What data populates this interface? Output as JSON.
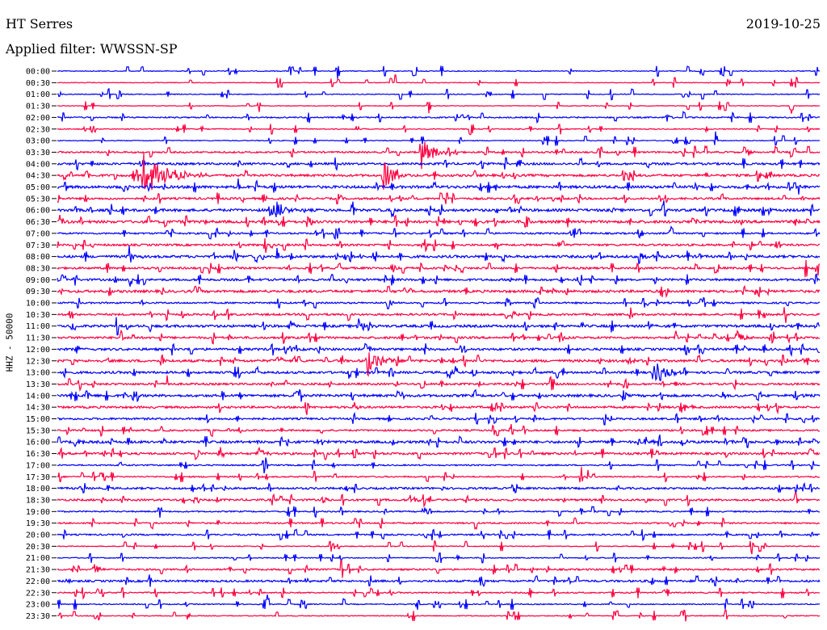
{
  "header": {
    "station": "HT Serres",
    "date": "2019-10-25",
    "filter": "Applied filter: WWSSN-SP"
  },
  "colors": {
    "even": "#0000ff",
    "odd": "#ff0040"
  },
  "chart_data": {
    "type": "line",
    "ylabel": "HHZ - 50000",
    "row_labels": [
      "00:00",
      "00:30",
      "01:00",
      "01:30",
      "02:00",
      "02:30",
      "03:00",
      "03:30",
      "04:00",
      "04:30",
      "05:00",
      "05:30",
      "06:00",
      "06:30",
      "07:00",
      "07:30",
      "08:00",
      "08:30",
      "09:00",
      "09:30",
      "10:00",
      "10:30",
      "11:00",
      "11:30",
      "12:00",
      "12:30",
      "13:00",
      "13:30",
      "14:00",
      "14:30",
      "15:00",
      "15:30",
      "16:00",
      "16:30",
      "17:00",
      "17:30",
      "18:00",
      "18:30",
      "19:00",
      "19:30",
      "20:00",
      "20:30",
      "21:00",
      "21:30",
      "22:00",
      "22:30",
      "23:00",
      "23:30"
    ],
    "noise": [
      0.5,
      0.4,
      0.5,
      0.4,
      0.8,
      0.6,
      0.5,
      1.0,
      1.3,
      1.4,
      1.6,
      1.2,
      1.6,
      1.6,
      1.0,
      1.2,
      1.5,
      1.2,
      1.3,
      1.5,
      1.0,
      1.2,
      1.5,
      1.3,
      1.4,
      1.5,
      1.4,
      1.2,
      1.5,
      1.3,
      1.2,
      1.0,
      1.5,
      1.3,
      0.8,
      0.8,
      1.2,
      1.2,
      0.8,
      0.9,
      0.9,
      0.5,
      0.6,
      1.0,
      1.2,
      0.8,
      0.6,
      0.5
    ],
    "events": [
      {
        "row": 4,
        "x": 826,
        "amp": 6,
        "dur": 14
      },
      {
        "row": 7,
        "x": 522,
        "amp": 22,
        "dur": 40
      },
      {
        "row": 7,
        "x": 926,
        "amp": 5,
        "dur": 10
      },
      {
        "row": 9,
        "x": 177,
        "amp": 30,
        "dur": 80
      },
      {
        "row": 9,
        "x": 475,
        "amp": 18,
        "dur": 36
      },
      {
        "row": 12,
        "x": 339,
        "amp": 16,
        "dur": 30
      },
      {
        "row": 13,
        "x": 75,
        "amp": 10,
        "dur": 10
      },
      {
        "row": 13,
        "x": 985,
        "amp": 6,
        "dur": 10
      },
      {
        "row": 16,
        "x": 160,
        "amp": 14,
        "dur": 18
      },
      {
        "row": 16,
        "x": 790,
        "amp": 12,
        "dur": 20
      },
      {
        "row": 17,
        "x": 1012,
        "amp": 14,
        "dur": 14
      },
      {
        "row": 17,
        "x": 486,
        "amp": 6,
        "dur": 12
      },
      {
        "row": 20,
        "x": 480,
        "amp": 8,
        "dur": 20
      },
      {
        "row": 21,
        "x": 627,
        "amp": 10,
        "dur": 20
      },
      {
        "row": 22,
        "x": 444,
        "amp": 12,
        "dur": 24
      },
      {
        "row": 22,
        "x": 360,
        "amp": 7,
        "dur": 12
      },
      {
        "row": 22,
        "x": 802,
        "amp": 8,
        "dur": 16
      },
      {
        "row": 22,
        "x": 1010,
        "amp": 8,
        "dur": 14
      },
      {
        "row": 23,
        "x": 693,
        "amp": 10,
        "dur": 14
      },
      {
        "row": 23,
        "x": 913,
        "amp": 10,
        "dur": 18
      },
      {
        "row": 24,
        "x": 95,
        "amp": 6,
        "dur": 10
      },
      {
        "row": 24,
        "x": 360,
        "amp": 6,
        "dur": 16
      },
      {
        "row": 25,
        "x": 455,
        "amp": 20,
        "dur": 40
      },
      {
        "row": 25,
        "x": 780,
        "amp": 6,
        "dur": 14
      },
      {
        "row": 26,
        "x": 810,
        "amp": 16,
        "dur": 40
      },
      {
        "row": 26,
        "x": 555,
        "amp": 10,
        "dur": 16
      },
      {
        "row": 28,
        "x": 985,
        "amp": 8,
        "dur": 16
      },
      {
        "row": 28,
        "x": 895,
        "amp": 6,
        "dur": 12
      },
      {
        "row": 29,
        "x": 438,
        "amp": 8,
        "dur": 14
      },
      {
        "row": 32,
        "x": 99,
        "amp": 7,
        "dur": 10
      },
      {
        "row": 32,
        "x": 395,
        "amp": 8,
        "dur": 14
      },
      {
        "row": 32,
        "x": 800,
        "amp": 7,
        "dur": 16
      },
      {
        "row": 32,
        "x": 845,
        "amp": 6,
        "dur": 12
      },
      {
        "row": 33,
        "x": 272,
        "amp": 10,
        "dur": 14
      },
      {
        "row": 33,
        "x": 320,
        "amp": 8,
        "dur": 24
      },
      {
        "row": 37,
        "x": 400,
        "amp": 7,
        "dur": 12
      },
      {
        "row": 37,
        "x": 508,
        "amp": 9,
        "dur": 16
      },
      {
        "row": 43,
        "x": 118,
        "amp": 9,
        "dur": 14
      },
      {
        "row": 44,
        "x": 80,
        "amp": 6,
        "dur": 16
      },
      {
        "row": 44,
        "x": 380,
        "amp": 6,
        "dur": 8
      },
      {
        "row": 44,
        "x": 805,
        "amp": 7,
        "dur": 14
      }
    ]
  }
}
